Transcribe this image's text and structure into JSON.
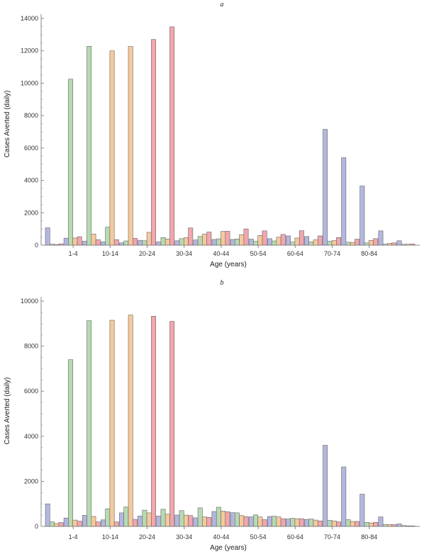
{
  "colors": [
    "#b3b7df",
    "#b6dab2",
    "#f6c99b",
    "#f2a6ae"
  ],
  "chart_data": [
    {
      "type": "bar",
      "panel_label": "a",
      "xlabel": "Age (years)",
      "ylabel": "Cases Averted (daily)",
      "ylim": [
        0,
        14000
      ],
      "yticks": [
        0,
        2000,
        4000,
        6000,
        8000,
        10000,
        12000,
        14000
      ],
      "x_tick_labels": [
        "1-4",
        "10-14",
        "20-24",
        "30-34",
        "40-44",
        "50-54",
        "60-64",
        "70-74",
        "80-84"
      ],
      "groups": [
        [
          1070,
          60,
          40,
          80
        ],
        [
          430,
          10250,
          440,
          520
        ],
        [
          240,
          12280,
          690,
          340
        ],
        [
          200,
          1110,
          12000,
          340
        ],
        [
          140,
          260,
          12270,
          420
        ],
        [
          300,
          270,
          790,
          12700
        ],
        [
          200,
          470,
          380,
          13480
        ],
        [
          270,
          400,
          460,
          1060
        ],
        [
          320,
          540,
          680,
          810
        ],
        [
          350,
          390,
          850,
          860
        ],
        [
          350,
          380,
          650,
          1000
        ],
        [
          370,
          240,
          600,
          880
        ],
        [
          400,
          260,
          490,
          660
        ],
        [
          570,
          190,
          440,
          890
        ],
        [
          530,
          200,
          330,
          570
        ],
        [
          7150,
          240,
          280,
          470
        ],
        [
          5400,
          180,
          170,
          370
        ],
        [
          3650,
          140,
          290,
          400
        ],
        [
          880,
          60,
          110,
          140
        ],
        [
          270,
          50,
          60,
          70
        ]
      ]
    },
    {
      "type": "bar",
      "panel_label": "b",
      "xlabel": "Age (years)",
      "ylabel": "Cases Averted (daily)",
      "ylim": [
        0,
        10000
      ],
      "yticks": [
        0,
        2000,
        4000,
        6000,
        8000,
        10000
      ],
      "x_tick_labels": [
        "1-4",
        "10-14",
        "20-24",
        "30-34",
        "40-44",
        "50-54",
        "60-64",
        "70-74",
        "80-84"
      ],
      "groups": [
        [
          1000,
          200,
          130,
          170
        ],
        [
          370,
          7400,
          280,
          230
        ],
        [
          490,
          9130,
          440,
          200
        ],
        [
          290,
          780,
          9150,
          200
        ],
        [
          600,
          860,
          9380,
          310
        ],
        [
          460,
          720,
          600,
          9330
        ],
        [
          460,
          760,
          540,
          9100
        ],
        [
          500,
          700,
          500,
          480
        ],
        [
          380,
          820,
          420,
          400
        ],
        [
          660,
          850,
          680,
          650
        ],
        [
          610,
          600,
          480,
          430
        ],
        [
          420,
          510,
          420,
          300
        ],
        [
          440,
          450,
          420,
          340
        ],
        [
          330,
          360,
          340,
          340
        ],
        [
          310,
          330,
          280,
          240
        ],
        [
          3600,
          270,
          240,
          200
        ],
        [
          2640,
          300,
          220,
          220
        ],
        [
          1430,
          180,
          150,
          180
        ],
        [
          420,
          80,
          80,
          80
        ],
        [
          110,
          40,
          20,
          20
        ]
      ]
    }
  ]
}
